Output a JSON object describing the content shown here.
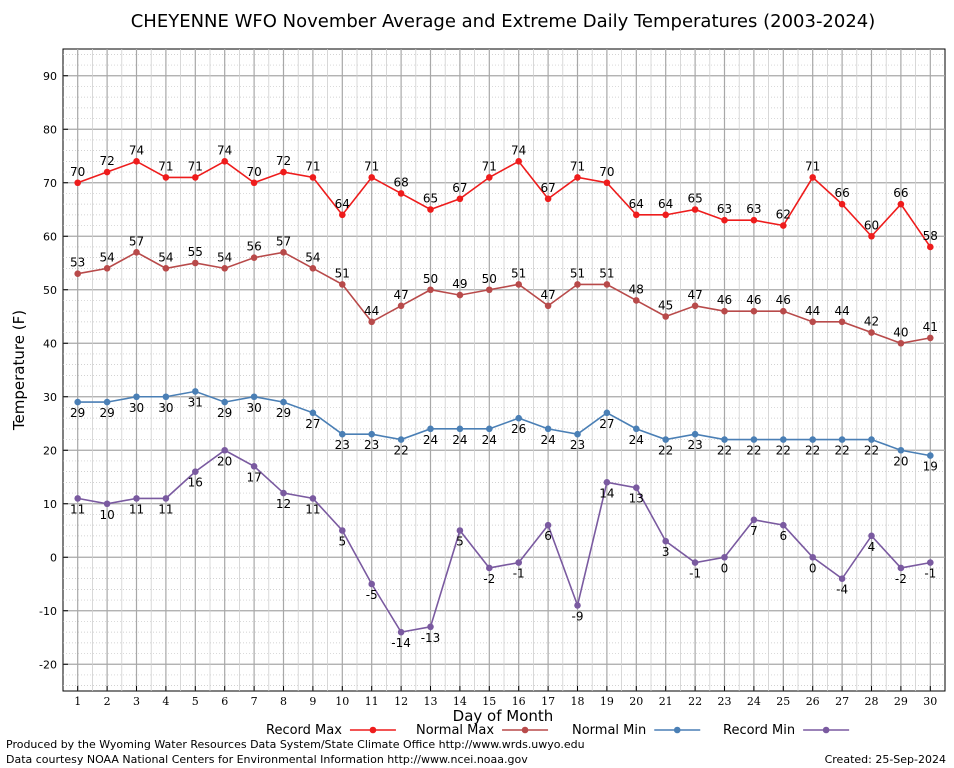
{
  "chart_data": {
    "type": "line",
    "title": "CHEYENNE WFO November Average and Extreme Daily Temperatures (2003-2024)",
    "xlabel": "Day of Month",
    "ylabel": "Temperature (F)",
    "ylim": [
      -25,
      95
    ],
    "y_ticks": [
      -20,
      -10,
      0,
      10,
      20,
      30,
      40,
      50,
      60,
      70,
      80,
      90
    ],
    "x": [
      1,
      2,
      3,
      4,
      5,
      6,
      7,
      8,
      9,
      10,
      11,
      12,
      13,
      14,
      15,
      16,
      17,
      18,
      19,
      20,
      21,
      22,
      23,
      24,
      25,
      26,
      27,
      28,
      29,
      30
    ],
    "grid": true,
    "legend_position": "bottom",
    "series": [
      {
        "name": "Record Max",
        "color": "#ee1c1c",
        "values": [
          70,
          72,
          74,
          71,
          71,
          74,
          70,
          72,
          71,
          64,
          71,
          68,
          65,
          67,
          71,
          74,
          67,
          71,
          70,
          64,
          64,
          65,
          63,
          63,
          62,
          71,
          66,
          60,
          66,
          58
        ]
      },
      {
        "name": "Normal Max",
        "color": "#b84a4a",
        "values": [
          53,
          54,
          57,
          54,
          55,
          54,
          56,
          57,
          54,
          51,
          44,
          47,
          50,
          49,
          50,
          51,
          47,
          51,
          51,
          48,
          45,
          47,
          46,
          46,
          46,
          44,
          44,
          42,
          40,
          41
        ]
      },
      {
        "name": "Normal Min",
        "color": "#4a7fb5",
        "values": [
          29,
          29,
          30,
          30,
          31,
          29,
          30,
          29,
          27,
          23,
          23,
          22,
          24,
          24,
          24,
          26,
          24,
          23,
          27,
          24,
          22,
          23,
          22,
          22,
          22,
          22,
          22,
          22,
          20,
          19
        ]
      },
      {
        "name": "Record Min",
        "color": "#7a5aa0",
        "values": [
          11,
          10,
          11,
          11,
          16,
          20,
          17,
          12,
          11,
          5,
          -5,
          -14,
          -13,
          5,
          -2,
          -1,
          6,
          -9,
          14,
          13,
          3,
          -1,
          0,
          7,
          6,
          0,
          -4,
          4,
          -2,
          -1
        ]
      }
    ]
  },
  "footer": {
    "producer": "Produced by the Wyoming Water Resources Data System/State Climate Office http://www.wrds.uwyo.edu",
    "courtesy": "Data courtesy NOAA National Centers for Environmental Information http://www.ncei.noaa.gov",
    "created": "Created: 25-Sep-2024"
  }
}
